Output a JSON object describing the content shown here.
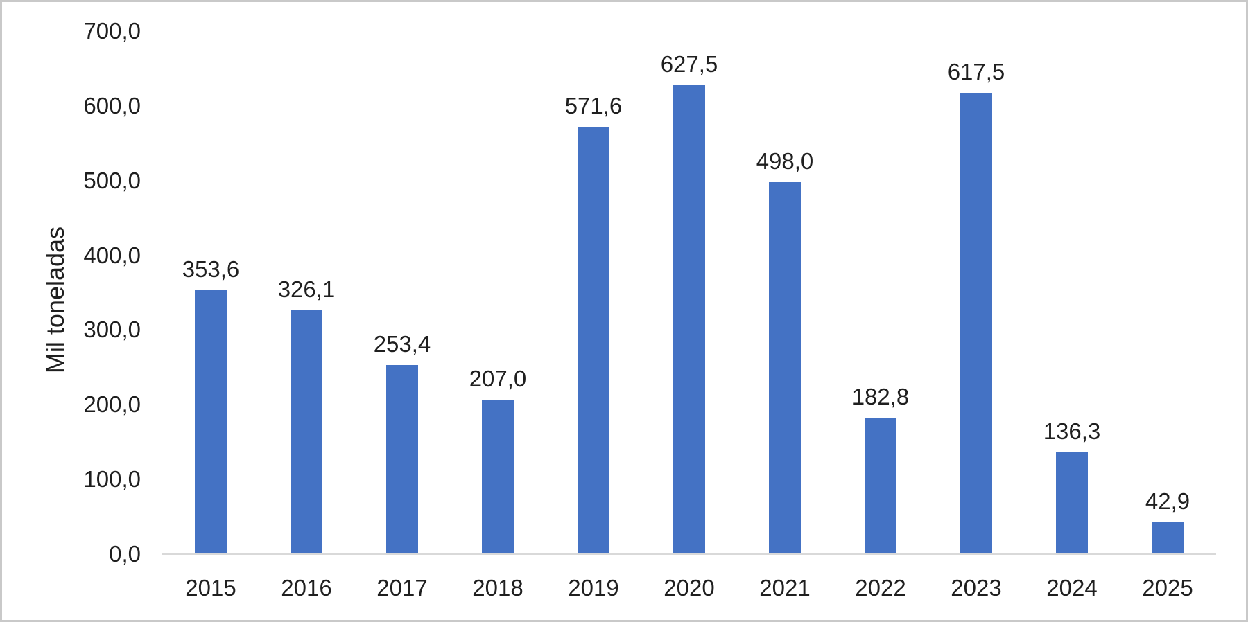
{
  "chart_data": {
    "type": "bar",
    "title": "",
    "ylabel": "Mil toneladas",
    "xlabel": "",
    "categories": [
      "2015",
      "2016",
      "2017",
      "2018",
      "2019",
      "2020",
      "2021",
      "2022",
      "2023",
      "2024",
      "2025"
    ],
    "values": [
      353.6,
      326.1,
      253.4,
      207.0,
      571.6,
      627.5,
      498.0,
      182.8,
      617.5,
      136.3,
      42.9
    ],
    "value_labels": [
      "353,6",
      "326,1",
      "253,4",
      "207,0",
      "571,6",
      "627,5",
      "498,0",
      "182,8",
      "617,5",
      "136,3",
      "42,9"
    ],
    "y_ticks": [
      {
        "value": 0,
        "label": "0,0"
      },
      {
        "value": 100,
        "label": "100,0"
      },
      {
        "value": 200,
        "label": "200,0"
      },
      {
        "value": 300,
        "label": "300,0"
      },
      {
        "value": 400,
        "label": "400,0"
      },
      {
        "value": 500,
        "label": "500,0"
      },
      {
        "value": 600,
        "label": "600,0"
      },
      {
        "value": 700,
        "label": "700,0"
      }
    ],
    "ylim": [
      0,
      700
    ],
    "grid": "off",
    "legend": "none",
    "colors": {
      "bar": "#4472C4",
      "axis_line": "#D9D9D9",
      "text": "#1F1F1F",
      "frame_border": "#C9C9C9",
      "background": "#FFFFFF"
    }
  }
}
